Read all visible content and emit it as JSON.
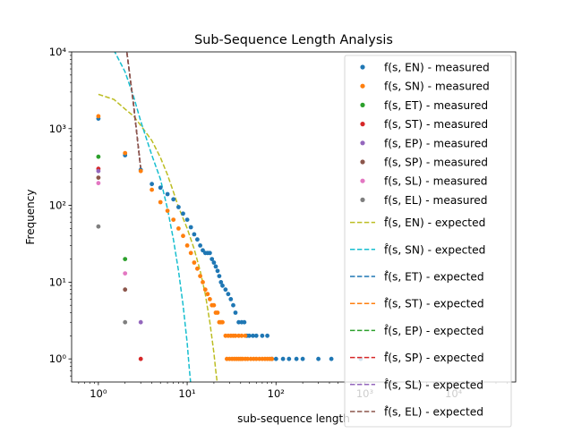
{
  "chart_data": {
    "type": "scatter",
    "title": "Sub-Sequence Length Analysis",
    "xlabel": "sub-sequence length",
    "ylabel": "Frequency",
    "xscale": "log",
    "yscale": "log",
    "xlim": [
      0.5,
      50000
    ],
    "ylim": [
      0.5,
      10000
    ],
    "xticks": [
      {
        "value": 1,
        "label": "10⁰"
      },
      {
        "value": 10,
        "label": "10¹"
      },
      {
        "value": 100,
        "label": "10²"
      },
      {
        "value": 1000,
        "label": "10³"
      },
      {
        "value": 10000,
        "label": "10⁴"
      }
    ],
    "yticks": [
      {
        "value": 1,
        "label": "10⁰"
      },
      {
        "value": 10,
        "label": "10¹"
      },
      {
        "value": 100,
        "label": "10²"
      },
      {
        "value": 1000,
        "label": "10³"
      },
      {
        "value": 10000,
        "label": "10⁴"
      }
    ],
    "grid": false,
    "legend_position": "right",
    "measured_series": [
      {
        "name": "f(s, EN) - measured",
        "color": "#1f77b4",
        "points": [
          [
            1,
            1350
          ],
          [
            2,
            450
          ],
          [
            3,
            290
          ],
          [
            4,
            190
          ],
          [
            5,
            170
          ],
          [
            6,
            140
          ],
          [
            7,
            120
          ],
          [
            8,
            95
          ],
          [
            9,
            78
          ],
          [
            10,
            65
          ],
          [
            11,
            52
          ],
          [
            12,
            42
          ],
          [
            13,
            36
          ],
          [
            14,
            30
          ],
          [
            15,
            26
          ],
          [
            16,
            24
          ],
          [
            17,
            24
          ],
          [
            18,
            24
          ],
          [
            19,
            20
          ],
          [
            20,
            18
          ],
          [
            21,
            16
          ],
          [
            22,
            14
          ],
          [
            23,
            12
          ],
          [
            24,
            10
          ],
          [
            25,
            9
          ],
          [
            27,
            8
          ],
          [
            29,
            7
          ],
          [
            31,
            6
          ],
          [
            33,
            5
          ],
          [
            35,
            4
          ],
          [
            38,
            3
          ],
          [
            41,
            3
          ],
          [
            44,
            3
          ],
          [
            47,
            2
          ],
          [
            50,
            2
          ],
          [
            55,
            2
          ],
          [
            60,
            2
          ],
          [
            70,
            2
          ],
          [
            80,
            2
          ],
          [
            90,
            1
          ],
          [
            100,
            1
          ],
          [
            120,
            1
          ],
          [
            140,
            1
          ],
          [
            170,
            1
          ],
          [
            200,
            1
          ],
          [
            300,
            1
          ],
          [
            420,
            1
          ],
          [
            900,
            1
          ]
        ]
      },
      {
        "name": "f(s, SN) - measured",
        "color": "#ff7f0e",
        "points": [
          [
            1,
            1450
          ],
          [
            2,
            480
          ],
          [
            3,
            280
          ],
          [
            4,
            160
          ],
          [
            5,
            110
          ],
          [
            6,
            85
          ],
          [
            7,
            65
          ],
          [
            8,
            50
          ],
          [
            9,
            40
          ],
          [
            10,
            30
          ],
          [
            11,
            24
          ],
          [
            12,
            18
          ],
          [
            13,
            15
          ],
          [
            14,
            12
          ],
          [
            15,
            10
          ],
          [
            16,
            8
          ],
          [
            17,
            7
          ],
          [
            18,
            6
          ],
          [
            19,
            5
          ],
          [
            20,
            5
          ],
          [
            21,
            4
          ],
          [
            22,
            4
          ],
          [
            23,
            3
          ],
          [
            24,
            3
          ],
          [
            25,
            3
          ],
          [
            27,
            2
          ],
          [
            29,
            2
          ],
          [
            31,
            2
          ],
          [
            33,
            2
          ],
          [
            35,
            2
          ],
          [
            38,
            2
          ],
          [
            41,
            2
          ],
          [
            45,
            2
          ],
          [
            28,
            1
          ],
          [
            30,
            1
          ],
          [
            32,
            1
          ],
          [
            34,
            1
          ],
          [
            36,
            1
          ],
          [
            38,
            1
          ],
          [
            40,
            1
          ],
          [
            42,
            1
          ],
          [
            45,
            1
          ],
          [
            48,
            1
          ],
          [
            52,
            1
          ],
          [
            56,
            1
          ],
          [
            60,
            1
          ],
          [
            65,
            1
          ],
          [
            70,
            1
          ],
          [
            75,
            1
          ],
          [
            80,
            1
          ],
          [
            85,
            1
          ],
          [
            90,
            1
          ]
        ]
      },
      {
        "name": "f(s, ET) - measured",
        "color": "#2ca02c",
        "points": [
          [
            1,
            430
          ],
          [
            2,
            20
          ]
        ]
      },
      {
        "name": "f(s, ST) - measured",
        "color": "#d62728",
        "points": [
          [
            1,
            300
          ],
          [
            3,
            1
          ]
        ]
      },
      {
        "name": "f(s, EP) - measured",
        "color": "#9467bd",
        "points": [
          [
            1,
            280
          ],
          [
            3,
            3
          ]
        ]
      },
      {
        "name": "f(s, SP) - measured",
        "color": "#8c564b",
        "points": [
          [
            1,
            230
          ],
          [
            2,
            8
          ]
        ]
      },
      {
        "name": "f(s, SL) - measured",
        "color": "#e377c2",
        "points": [
          [
            1,
            195
          ],
          [
            2,
            13
          ]
        ]
      },
      {
        "name": "f(s, EL) - measured",
        "color": "#7f7f7f",
        "points": [
          [
            1,
            53
          ],
          [
            2,
            3
          ]
        ]
      }
    ],
    "expected_series": [
      {
        "name": "f̂(s, EN) - expected",
        "color": "#bcbd22",
        "points": [
          [
            1,
            2800
          ],
          [
            1.5,
            2400
          ],
          [
            2,
            1800
          ],
          [
            2.5,
            1450
          ],
          [
            3,
            1100
          ],
          [
            4,
            700
          ],
          [
            5,
            420
          ],
          [
            6,
            250
          ],
          [
            7,
            150
          ],
          [
            8,
            95
          ],
          [
            10,
            50
          ],
          [
            12,
            27
          ],
          [
            14,
            14
          ],
          [
            16,
            7
          ],
          [
            18,
            3
          ],
          [
            20,
            1.2
          ],
          [
            21,
            0.7
          ],
          [
            22,
            0.45
          ]
        ]
      },
      {
        "name": "f̂(s, SN) - expected",
        "color": "#17becf",
        "points": [
          [
            0.6,
            30000
          ],
          [
            1.0,
            19000
          ],
          [
            1.2,
            14000
          ],
          [
            1.5,
            10500
          ],
          [
            2,
            5500
          ],
          [
            2.5,
            2600
          ],
          [
            3,
            1250
          ],
          [
            4,
            450
          ],
          [
            5,
            220
          ],
          [
            6,
            90
          ],
          [
            7,
            36
          ],
          [
            8,
            14
          ],
          [
            9,
            5
          ],
          [
            10,
            1.6
          ],
          [
            10.5,
            0.8
          ],
          [
            11,
            0.45
          ]
        ]
      },
      {
        "name": "f̂(s, ET) - expected",
        "color": "#1f77b4",
        "points": [
          [
            2,
            15000
          ],
          [
            2.5,
            2000
          ],
          [
            3,
            300
          ]
        ]
      },
      {
        "name": "f̂(s, ST) - expected",
        "color": "#ff7f0e",
        "points": [
          [
            2,
            15000
          ],
          [
            2.5,
            2000
          ],
          [
            3,
            300
          ]
        ]
      },
      {
        "name": "f̂(s, EP) - expected",
        "color": "#2ca02c",
        "points": [
          [
            2,
            15000
          ],
          [
            2.5,
            2000
          ],
          [
            3,
            300
          ]
        ]
      },
      {
        "name": "f̂(s, SP) - expected",
        "color": "#d62728",
        "points": [
          [
            2,
            15000
          ],
          [
            2.5,
            2000
          ],
          [
            3,
            300
          ]
        ]
      },
      {
        "name": "f̂(s, SL) - expected",
        "color": "#9467bd",
        "points": [
          [
            2,
            15000
          ],
          [
            2.5,
            2000
          ],
          [
            3,
            300
          ]
        ]
      },
      {
        "name": "f̂(s, EL) - expected",
        "color": "#8c564b",
        "points": [
          [
            2,
            15000
          ],
          [
            2.5,
            2000
          ],
          [
            3,
            300
          ]
        ]
      }
    ]
  }
}
